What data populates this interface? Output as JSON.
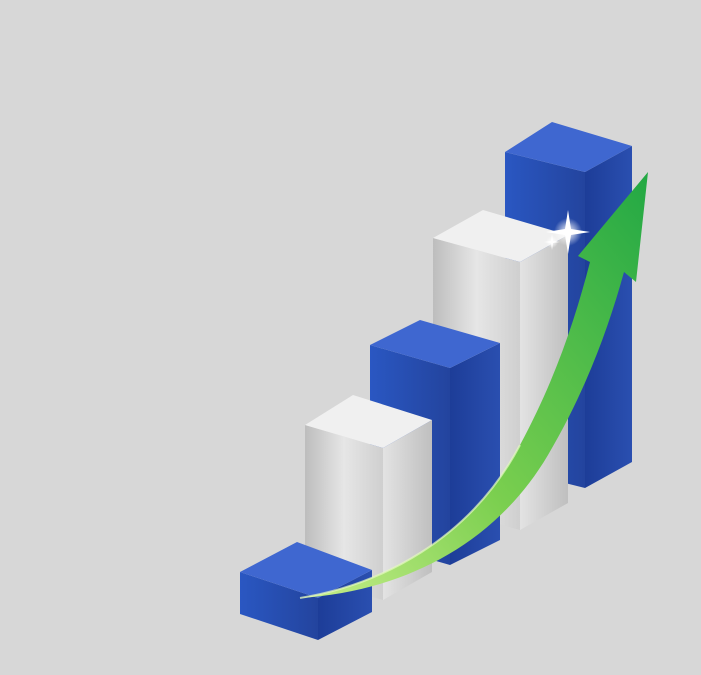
{
  "illustration": {
    "subject": "growth-bar-chart-with-arrow",
    "palette": {
      "background": "#d7d7d7",
      "blue_front": "#2a4fb0",
      "blue_side": "#1d3c95",
      "blue_top": "#3c66cf",
      "gray_front": "#dcdcdc",
      "gray_side": "#c2c2c2",
      "gray_top": "#ededed",
      "arrow_green": "#2eb24a",
      "arrow_light": "#a6e06a",
      "sparkle": "#ffffff"
    },
    "bars": [
      {
        "color": "blue",
        "relative_height": 0.11
      },
      {
        "color": "gray",
        "relative_height": 0.43
      },
      {
        "color": "blue",
        "relative_height": 0.6
      },
      {
        "color": "gray",
        "relative_height": 0.78
      },
      {
        "color": "blue",
        "relative_height": 1.0
      }
    ],
    "icons": [
      "growth-arrow-icon",
      "sparkle-icon"
    ]
  }
}
